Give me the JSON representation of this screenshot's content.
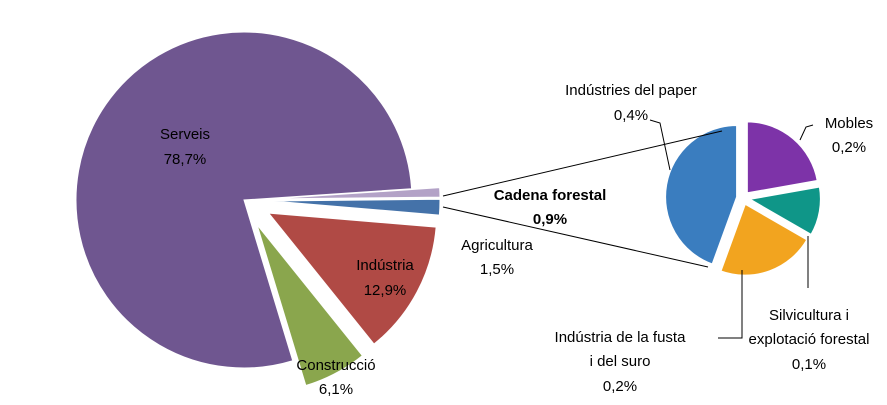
{
  "chart_data": {
    "type": "pie",
    "main_pie": {
      "slices": [
        {
          "name": "Serveis",
          "value": 78.7,
          "label": "78,7%",
          "color": "#6f5690"
        },
        {
          "name": "Construcció",
          "value": 6.1,
          "label": "6,1%",
          "color": "#8aa64d"
        },
        {
          "name": "Indústria",
          "value": 12.9,
          "label": "12,9%",
          "color": "#b04a45"
        },
        {
          "name": "Agricultura",
          "value": 1.5,
          "label": "1,5%",
          "color": "#4472a9"
        },
        {
          "name": "Cadena forestal",
          "value": 0.9,
          "label": "0,9%",
          "color": "#b3a2c7"
        }
      ]
    },
    "breakdown_pie": {
      "of": "Cadena forestal",
      "slices": [
        {
          "name": "Mobles",
          "value": 0.2,
          "label": "0,2%",
          "color": "#7d33a8"
        },
        {
          "name": "Silvicultura i explotació forestal",
          "name_lines": [
            "Silvicultura i",
            "explotació forestal"
          ],
          "value": 0.1,
          "label": "0,1%",
          "color": "#0f9688"
        },
        {
          "name": "Indústria de la fusta i del suro",
          "name_lines": [
            "Indústria de la fusta",
            "i del suro"
          ],
          "value": 0.2,
          "label": "0,2%",
          "color": "#f2a41f"
        },
        {
          "name": "Indústries del paper",
          "value": 0.4,
          "label": "0,4%",
          "color": "#3a7dbf"
        }
      ]
    }
  }
}
